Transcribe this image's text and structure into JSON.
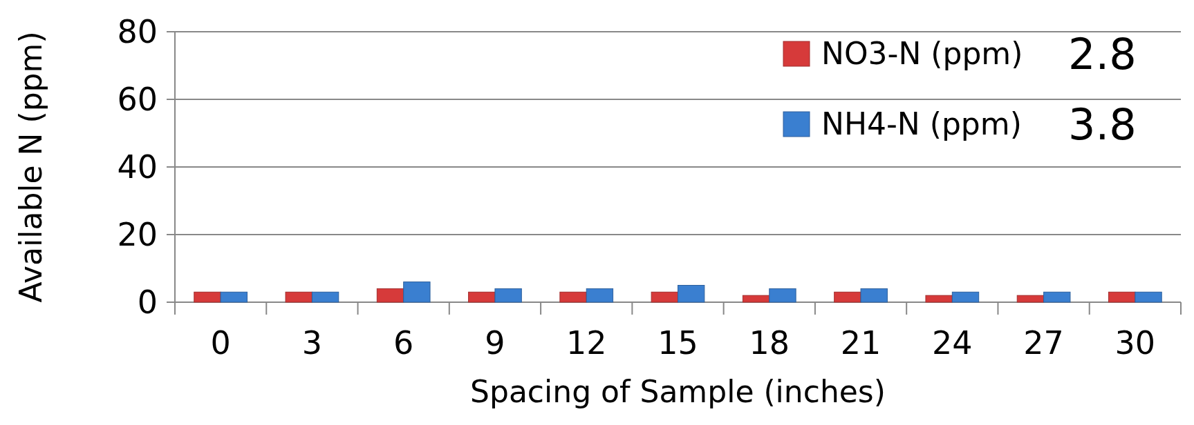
{
  "chart_data": {
    "type": "bar",
    "xlabel": "Spacing of Sample (inches)",
    "ylabel": "Available N (ppm)",
    "categories": [
      "0",
      "3",
      "6",
      "9",
      "12",
      "15",
      "18",
      "21",
      "24",
      "27",
      "30"
    ],
    "series": [
      {
        "name": "NO3-N (ppm)",
        "color": "#d63a3a",
        "values": [
          3,
          3,
          4,
          3,
          3,
          3,
          2,
          3,
          2,
          2,
          3
        ]
      },
      {
        "name": "NH4-N (ppm)",
        "color": "#3a7fd0",
        "values": [
          3,
          3,
          6,
          4,
          4,
          5,
          4,
          4,
          3,
          3,
          3
        ]
      }
    ],
    "ylim": [
      0,
      80
    ],
    "yticks": [
      0,
      20,
      40,
      60,
      80
    ],
    "grid": "y",
    "legend": "top right",
    "annotations": [
      "2.8",
      "3.8"
    ]
  }
}
